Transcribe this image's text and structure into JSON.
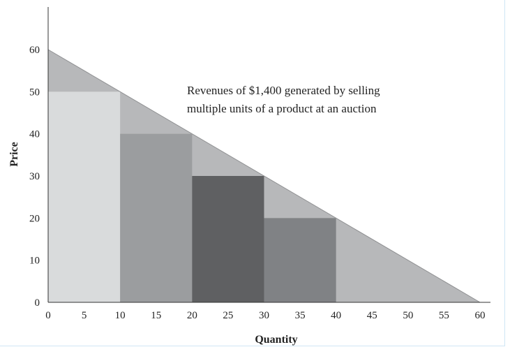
{
  "chart_data": {
    "type": "area",
    "annotation": [
      "Revenues of $1,400 generated by selling",
      "multiple units of a product at an auction"
    ],
    "xlabel": "Quantity",
    "ylabel": "Price",
    "xlim": [
      0,
      60
    ],
    "ylim": [
      0,
      60
    ],
    "x_ticks": [
      0,
      5,
      10,
      15,
      20,
      25,
      30,
      35,
      40,
      45,
      50,
      55,
      60
    ],
    "y_ticks": [
      0,
      10,
      20,
      30,
      40,
      50,
      60
    ],
    "demand_line": {
      "points": [
        [
          0,
          60
        ],
        [
          60,
          0
        ]
      ],
      "color": "#b7b8ba"
    },
    "bars": [
      {
        "x0": 0,
        "x1": 10,
        "price": 50,
        "color": "#d9dbdc"
      },
      {
        "x0": 10,
        "x1": 20,
        "price": 40,
        "color": "#9b9d9f"
      },
      {
        "x0": 20,
        "x1": 30,
        "price": 30,
        "color": "#5f6062"
      },
      {
        "x0": 30,
        "x1": 40,
        "price": 20,
        "color": "#808285"
      }
    ],
    "grid": false
  }
}
